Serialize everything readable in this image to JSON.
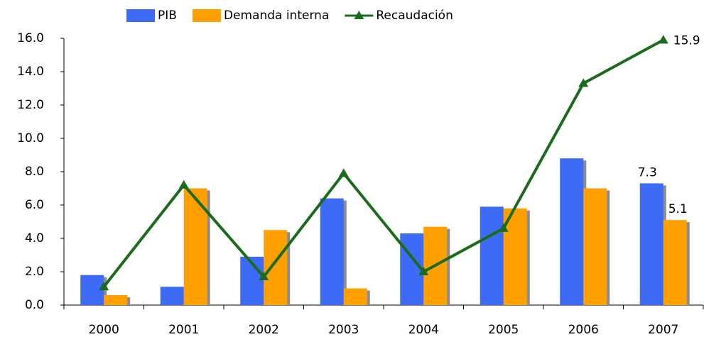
{
  "chart_data": {
    "type": "bar",
    "categories": [
      "2000",
      "2001",
      "2002",
      "2003",
      "2004",
      "2005",
      "2006",
      "2007"
    ],
    "series": [
      {
        "name": "PIB",
        "color": "#3d6bf5",
        "kind": "bar",
        "values": [
          1.8,
          1.1,
          2.9,
          6.4,
          4.3,
          5.9,
          8.8,
          7.3
        ]
      },
      {
        "name": "Demanda interna",
        "color": "#ff9f00",
        "kind": "bar",
        "values": [
          0.6,
          7.0,
          4.5,
          1.0,
          4.7,
          5.8,
          7.0,
          5.1
        ]
      },
      {
        "name": "Recaudación",
        "color": "#1a6b1a",
        "kind": "line",
        "values": [
          1.1,
          7.2,
          1.7,
          7.9,
          2.0,
          4.6,
          13.3,
          15.9
        ]
      }
    ],
    "data_labels": "last",
    "ylim": [
      0,
      16
    ],
    "yticks": [
      {
        "value": 0,
        "label": "0.0"
      },
      {
        "value": 2,
        "label": "2.0"
      },
      {
        "value": 4,
        "label": "4.0"
      },
      {
        "value": 6,
        "label": "6.0"
      },
      {
        "value": 8,
        "label": "8.0"
      },
      {
        "value": 10,
        "label": "10.0"
      },
      {
        "value": 12,
        "label": "12.0"
      },
      {
        "value": 14,
        "label": "14.0"
      },
      {
        "value": 16,
        "label": "16.0"
      }
    ],
    "legend": "top"
  }
}
